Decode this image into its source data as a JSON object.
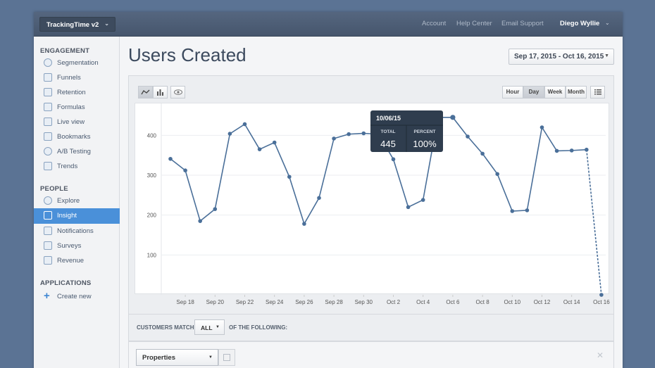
{
  "topbar": {
    "project": "TrackingTime v2",
    "links": [
      "Account",
      "Help Center",
      "Email Support"
    ],
    "user": "Diego Wyllie"
  },
  "sidebar": {
    "sections": [
      {
        "title": "ENGAGEMENT",
        "items": [
          {
            "label": "Segmentation",
            "icon": "pie-chart-icon"
          },
          {
            "label": "Funnels",
            "icon": "funnel-icon"
          },
          {
            "label": "Retention",
            "icon": "retention-grid-icon"
          },
          {
            "label": "Formulas",
            "icon": "calculator-icon"
          },
          {
            "label": "Live view",
            "icon": "live-chart-icon"
          },
          {
            "label": "Bookmarks",
            "icon": "bookmarks-icon"
          },
          {
            "label": "A/B Testing",
            "icon": "ab-testing-icon"
          },
          {
            "label": "Trends",
            "icon": "trends-icon"
          }
        ]
      },
      {
        "title": "PEOPLE",
        "items": [
          {
            "label": "Explore",
            "icon": "globe-icon"
          },
          {
            "label": "Insight",
            "icon": "bar-chart-icon",
            "active": true
          },
          {
            "label": "Notifications",
            "icon": "notifications-icon"
          },
          {
            "label": "Surveys",
            "icon": "survey-icon"
          },
          {
            "label": "Revenue",
            "icon": "dollar-icon"
          }
        ]
      },
      {
        "title": "APPLICATIONS",
        "items": [
          {
            "label": "Create new",
            "icon": "plus-icon"
          }
        ]
      }
    ]
  },
  "main": {
    "title": "Users Created",
    "date_range": "Sep 17, 2015 - Oct 16, 2015",
    "granularity": [
      "Hour",
      "Day",
      "Week",
      "Month"
    ],
    "granularity_selected": "Day"
  },
  "tooltip": {
    "date": "10/06/15",
    "total_label": "TOTAL",
    "percent_label": "PERCENT",
    "total_value": "445",
    "percent_value": "100%"
  },
  "chart_data": {
    "type": "line",
    "x_tick_labels": [
      "Sep 18",
      "Sep 20",
      "Sep 22",
      "Sep 24",
      "Sep 26",
      "Sep 28",
      "Sep 30",
      "Oct 2",
      "Oct 4",
      "Oct 6",
      "Oct 8",
      "Oct 10",
      "Oct 12",
      "Oct 14",
      "Oct 16"
    ],
    "y_tick_labels": [
      "100",
      "200",
      "300",
      "400"
    ],
    "ylim": [
      0,
      480
    ],
    "grid": true,
    "color": "#4a6f99",
    "series": [
      {
        "x": [
          "Sep 17",
          "Sep 18",
          "Sep 19",
          "Sep 20",
          "Sep 21",
          "Sep 22",
          "Sep 23",
          "Sep 24",
          "Sep 25",
          "Sep 26",
          "Sep 27",
          "Sep 28",
          "Sep 29",
          "Sep 30",
          "Oct 1",
          "Oct 2",
          "Oct 3",
          "Oct 4",
          "Oct 5",
          "Oct 6",
          "Oct 7",
          "Oct 8",
          "Oct 9",
          "Oct 10",
          "Oct 11",
          "Oct 12",
          "Oct 13",
          "Oct 14",
          "Oct 15",
          "Oct 16"
        ],
        "values": [
          341,
          312,
          185,
          215,
          404,
          428,
          365,
          382,
          296,
          178,
          243,
          392,
          403,
          405,
          403,
          340,
          220,
          238,
          445,
          445,
          397,
          354,
          303,
          210,
          212,
          420,
          361,
          362,
          364,
          0
        ]
      }
    ]
  },
  "filters": {
    "customers_match": "CUSTOMERS MATCH",
    "match_value": "ALL",
    "following": "OF THE FOLLOWING:",
    "property_select": "Properties"
  }
}
